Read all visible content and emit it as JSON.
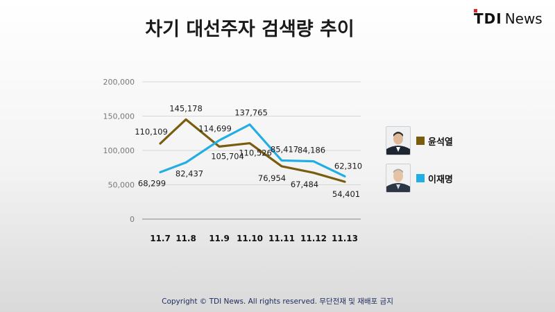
{
  "header": {
    "title": "차기 대선주자 검색량 추이",
    "logo_brand": "TDI",
    "logo_suffix": "News"
  },
  "footer": {
    "copyright": "Copyright © TDI News. All rights reserved. 무단전재 및 재배포 금지"
  },
  "colors": {
    "yoon": "#7a5c0e",
    "lee": "#23aee3",
    "logo_accent": "#d8262c"
  },
  "legend": [
    {
      "name": "윤석열",
      "icon": "person-photo-icon"
    },
    {
      "name": "이재명",
      "icon": "person-photo-icon"
    }
  ],
  "chart_data": {
    "type": "line",
    "title": "차기 대선주자 검색량 추이",
    "xlabel": "",
    "ylabel": "",
    "categories": [
      "11.7",
      "11.8",
      "11.9",
      "11.10",
      "11.11",
      "11.12",
      "11.13"
    ],
    "ylim": [
      0,
      200000
    ],
    "yticks": [
      0,
      50000,
      100000,
      150000,
      200000
    ],
    "ytick_labels": [
      "0",
      "50,000",
      "100,000",
      "150,000",
      "200,000"
    ],
    "grid": true,
    "legend_position": "right",
    "series": [
      {
        "name": "윤석열",
        "values": [
          110109,
          145178,
          105704,
          110526,
          76954,
          67484,
          54401
        ],
        "labels": [
          "110,109",
          "145,178",
          "105,704",
          "110,526",
          "76,954",
          "67,484",
          "54,401"
        ]
      },
      {
        "name": "이재명",
        "values": [
          68299,
          82437,
          114699,
          137765,
          85417,
          84186,
          62310
        ],
        "labels": [
          "68,299",
          "82,437",
          "114,699",
          "137,765",
          "85,417",
          "84,186",
          "62,310"
        ]
      }
    ]
  }
}
